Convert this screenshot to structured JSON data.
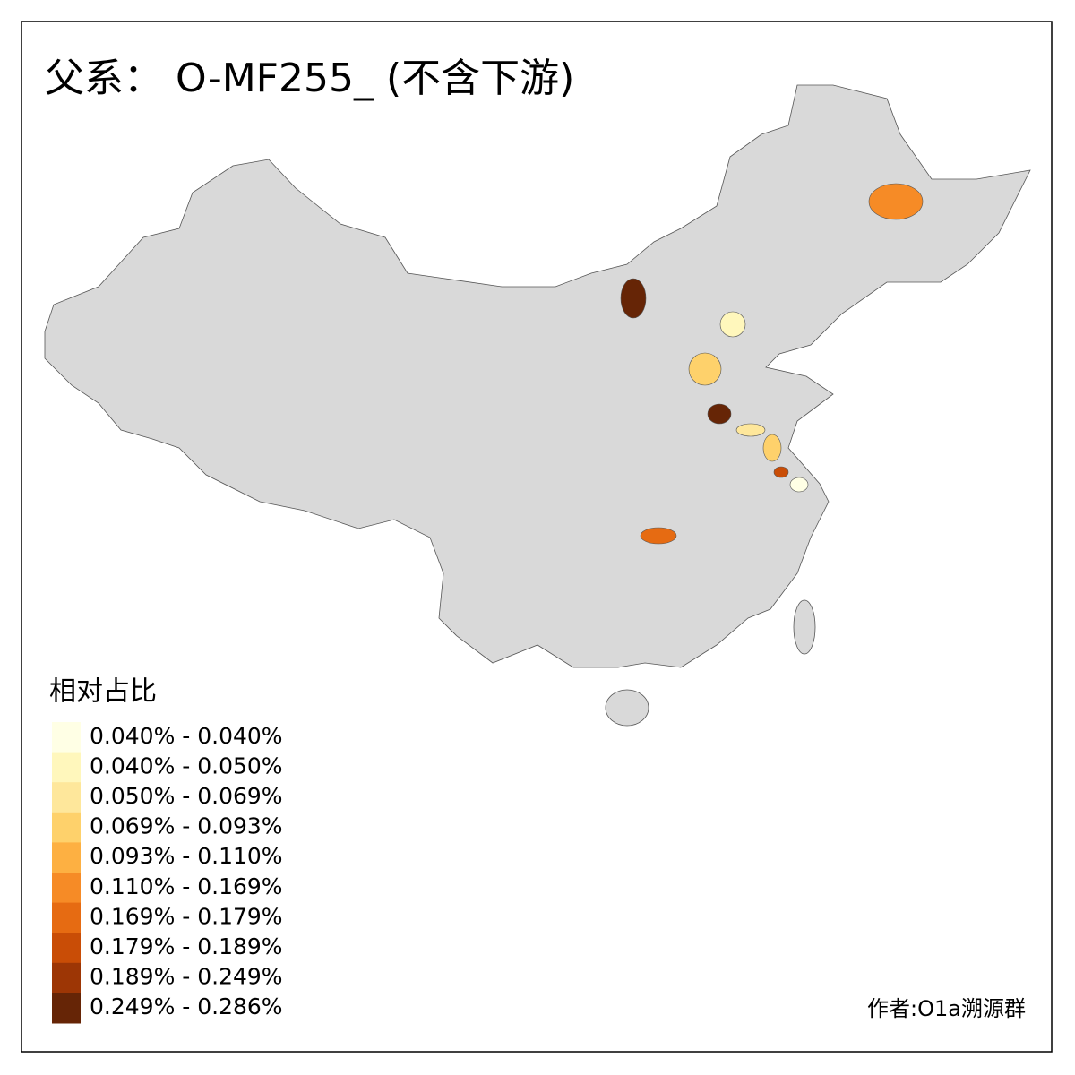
{
  "title": "父系： O-MF255_ (不含下游)",
  "legend": {
    "title": "相对占比",
    "entries": [
      {
        "label": "0.040% - 0.040%",
        "color": "#FFFFE5"
      },
      {
        "label": "0.040% - 0.050%",
        "color": "#FFF7BC"
      },
      {
        "label": "0.050% - 0.069%",
        "color": "#FEE79B"
      },
      {
        "label": "0.069% - 0.093%",
        "color": "#FED16B"
      },
      {
        "label": "0.093% - 0.110%",
        "color": "#FDB042"
      },
      {
        "label": "0.110% - 0.169%",
        "color": "#F68B26"
      },
      {
        "label": "0.169% - 0.179%",
        "color": "#E66B12"
      },
      {
        "label": "0.179% - 0.189%",
        "color": "#C94D06"
      },
      {
        "label": "0.189% - 0.249%",
        "color": "#9D3605"
      },
      {
        "label": "0.249% - 0.286%",
        "color": "#662506"
      }
    ]
  },
  "credit": "作者:O1a溯源群"
}
